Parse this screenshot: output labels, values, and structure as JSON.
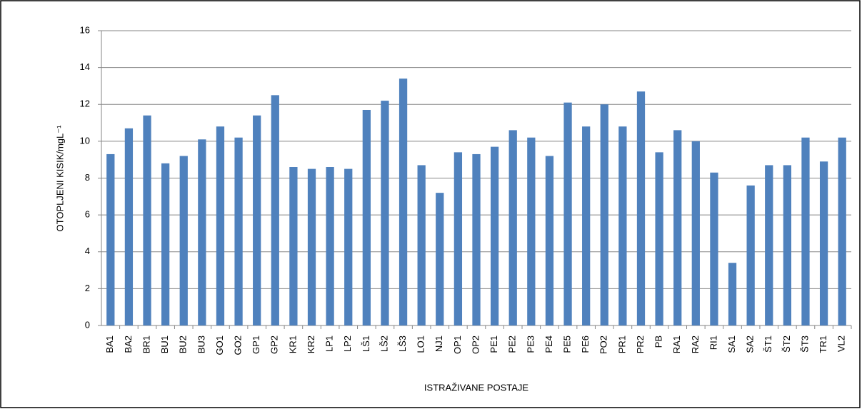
{
  "chart_data": {
    "type": "bar",
    "x_label": "ISTRAŽIVANE POSTAJE",
    "y_label": "OTOPLJENI KISIK/mgL⁻¹",
    "categories": [
      "BA1",
      "BA2",
      "BR1",
      "BU1",
      "BU2",
      "BU3",
      "GO1",
      "GO2",
      "GP1",
      "GP2",
      "KR1",
      "KR2",
      "LP1",
      "LP2",
      "LŠ1",
      "LŠ2",
      "LŠ3",
      "LO1",
      "NJ1",
      "OP1",
      "OP2",
      "PE1",
      "PE2",
      "PE3",
      "PE4",
      "PE5",
      "PE6",
      "PO2",
      "PR1",
      "PR2",
      "PB",
      "RA1",
      "RA2",
      "RI1",
      "SA1",
      "SA2",
      "ŠT1",
      "ŠT2",
      "ŠT3",
      "TR1",
      "VL2"
    ],
    "values": [
      9.3,
      10.7,
      11.4,
      8.8,
      9.2,
      10.1,
      10.8,
      10.2,
      11.4,
      12.5,
      8.6,
      8.5,
      8.6,
      8.5,
      11.7,
      12.2,
      13.4,
      8.7,
      7.2,
      9.4,
      9.3,
      9.7,
      10.6,
      10.2,
      9.2,
      12.1,
      10.8,
      12.0,
      10.8,
      12.7,
      9.4,
      10.6,
      10.0,
      8.3,
      3.4,
      7.6,
      8.7,
      8.7,
      10.2,
      8.9,
      10.2
    ],
    "color": "#4f81bd",
    "ylim": [
      0,
      16
    ],
    "yticks": [
      0,
      2,
      4,
      6,
      8,
      10,
      12,
      14,
      16
    ],
    "grid": true
  }
}
